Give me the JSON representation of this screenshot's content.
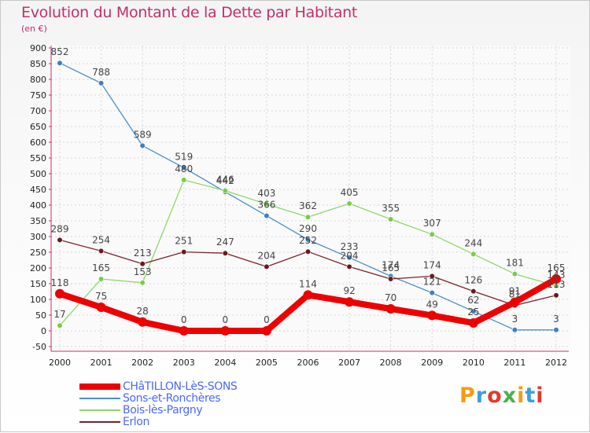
{
  "title": "Evolution du Montant de la Dette par Habitant",
  "subtitle": "(en €)",
  "brand": {
    "letters": [
      "P",
      "r",
      "o",
      "x",
      "i",
      "t",
      "i"
    ],
    "colors": [
      "#f39c12",
      "#3aa0d8",
      "#e23b2a",
      "#4caf50",
      "#f39c12",
      "#3aa0d8",
      "#e23b2a"
    ]
  },
  "chart_data": {
    "type": "line",
    "title": "Evolution du Montant de la Dette par Habitant",
    "ylabel": "(en €)",
    "xlabel": "",
    "ylim": [
      -50,
      900
    ],
    "yticks": [
      "-50",
      "0",
      "50",
      "100",
      "150",
      "200",
      "250",
      "300",
      "350",
      "400",
      "450",
      "500",
      "550",
      "600",
      "650",
      "700",
      "750",
      "800",
      "850",
      "900"
    ],
    "categories": [
      "2000",
      "2001",
      "2002",
      "2003",
      "2004",
      "2005",
      "2006",
      "2007",
      "2008",
      "2009",
      "2010",
      "2011",
      "2012"
    ],
    "series": [
      {
        "name": "Sons-et-Ronchères",
        "color": "#4a90c8",
        "marker": "#3f7fc0",
        "values": [
          852,
          788,
          589,
          519,
          442,
          366,
          290,
          233,
          174,
          121,
          62,
          3,
          3
        ],
        "labels": [
          "852",
          "788",
          "589",
          "519",
          "442",
          "366",
          "290",
          "233",
          "174",
          "121",
          "62",
          "3",
          "3"
        ]
      },
      {
        "name": "Bois-lès-Pargny",
        "color": "#8cd86a",
        "marker": "#7acb4a",
        "values": [
          17,
          165,
          153,
          480,
          446,
          403,
          362,
          405,
          355,
          307,
          244,
          181,
          143
        ],
        "labels": [
          "17",
          "165",
          "153",
          "480",
          "446",
          "403",
          "362",
          "405",
          "355",
          "307",
          "244",
          "181",
          "143"
        ]
      },
      {
        "name": "Erlon",
        "color": "#7a2228",
        "marker": "#6a1a1f",
        "values": [
          289,
          254,
          213,
          251,
          247,
          204,
          252,
          204,
          165,
          174,
          126,
          81,
          113
        ],
        "labels": [
          "289",
          "254",
          "213",
          "251",
          "247",
          "204",
          "252",
          "204",
          "165",
          "174",
          "126",
          "81",
          "113"
        ]
      },
      {
        "name": "CHâTILLON-LèS-SONS",
        "color": "#ee0000",
        "marker": "#ee0000",
        "values": [
          118,
          75,
          28,
          0,
          0,
          0,
          114,
          92,
          70,
          49,
          25,
          91,
          165
        ],
        "labels": [
          "118",
          "75",
          "28",
          "0",
          "0",
          "0",
          "114",
          "92",
          "70",
          "49",
          "25",
          "91",
          "165"
        ]
      }
    ],
    "legend": [
      {
        "name": "CHâTILLON-LèS-SONS",
        "color": "#ee0000",
        "thickness": 8
      },
      {
        "name": "Sons-et-Ronchères",
        "color": "#4a90c8",
        "thickness": 1.5
      },
      {
        "name": "Bois-lès-Pargny",
        "color": "#8cd86a",
        "thickness": 1.5
      },
      {
        "name": "Erlon",
        "color": "#7a2228",
        "thickness": 1.5
      }
    ]
  }
}
